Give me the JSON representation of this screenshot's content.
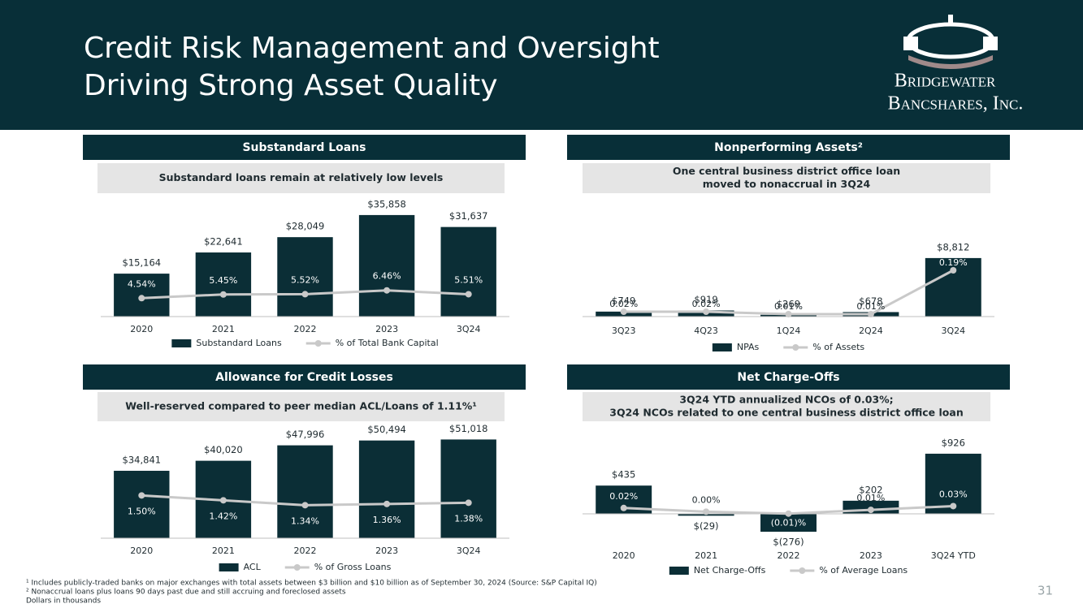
{
  "header": {
    "title": [
      "Credit Risk Management and Oversight",
      "Driving Strong Asset Quality"
    ],
    "logo": [
      "Bridgewater",
      "Bancshares, Inc."
    ]
  },
  "chart_data": [
    {
      "type": "combo",
      "title": "Substandard Loans",
      "subtitle": [
        "Substandard loans remain at relatively low levels"
      ],
      "categories": [
        "2020",
        "2021",
        "2022",
        "2023",
        "3Q24"
      ],
      "ylim": [
        0,
        43000
      ],
      "y2lim": [
        0,
        30
      ],
      "series": [
        {
          "name": "Substandard Loans",
          "type": "bar",
          "color": "#0b2e36",
          "values": [
            15164,
            22641,
            28049,
            35858,
            31637
          ],
          "value_labels": [
            "$15,164",
            "$22,641",
            "$28,049",
            "$35,858",
            "$31,637"
          ]
        },
        {
          "name": "% of Total Bank Capital",
          "type": "line",
          "axis": "y2",
          "color": "#c9c9c9",
          "values": [
            4.54,
            5.45,
            5.52,
            6.46,
            5.51
          ],
          "value_labels": [
            "4.54%",
            "5.45%",
            "5.52%",
            "6.46%",
            "5.51%"
          ]
        }
      ]
    },
    {
      "type": "combo",
      "title": "Nonperforming Assets²",
      "subtitle": [
        "One central business district office loan",
        "moved to nonaccrual in 3Q24"
      ],
      "categories": [
        "3Q23",
        "4Q23",
        "1Q24",
        "2Q24",
        "3Q24"
      ],
      "ylim": [
        0,
        11000
      ],
      "y2lim": [
        0,
        0.3
      ],
      "series": [
        {
          "name": "NPAs",
          "type": "bar",
          "color": "#0b2e36",
          "values": [
            749,
            919,
            269,
            678,
            8812
          ],
          "value_labels": [
            "$749",
            "$919",
            "$269",
            "$678",
            "$8,812"
          ]
        },
        {
          "name": "% of Assets",
          "type": "line",
          "axis": "y2",
          "color": "#c9c9c9",
          "values": [
            0.02,
            0.02,
            0.01,
            0.01,
            0.19
          ],
          "value_labels": [
            "0.02%",
            "0.02%",
            "0.01%",
            "0.01%",
            "0.19%"
          ]
        }
      ]
    },
    {
      "type": "combo",
      "title": "Allowance for Credit Losses",
      "subtitle": [
        "Well-reserved compared to peer median ACL/Loans of 1.11%¹"
      ],
      "categories": [
        "2020",
        "2021",
        "2022",
        "2023",
        "3Q24"
      ],
      "ylim": [
        0,
        60000
      ],
      "y2lim": [
        0.8,
        2.7
      ],
      "series": [
        {
          "name": "ACL",
          "type": "bar",
          "color": "#0b2e36",
          "values": [
            34841,
            40020,
            47996,
            50494,
            51018
          ],
          "value_labels": [
            "$34,841",
            "$40,020",
            "$47,996",
            "$50,494",
            "$51,018"
          ]
        },
        {
          "name": "% of Gross Loans",
          "type": "line",
          "axis": "y2",
          "color": "#c9c9c9",
          "values": [
            1.5,
            1.42,
            1.34,
            1.36,
            1.38
          ],
          "value_labels": [
            "1.50%",
            "1.42%",
            "1.34%",
            "1.36%",
            "1.38%"
          ]
        }
      ]
    },
    {
      "type": "combo",
      "title": "Net Charge-Offs",
      "subtitle": [
        "3Q24 YTD annualized NCOs of 0.03%;",
        "3Q24 NCOs related to one central business district office loan"
      ],
      "categories": [
        "2020",
        "2021",
        "2022",
        "2023",
        "3Q24 YTD"
      ],
      "ylim": [
        -400,
        1100
      ],
      "y2lim": [
        -0.15,
        0.37
      ],
      "series": [
        {
          "name": "Net Charge-Offs",
          "type": "bar",
          "color": "#0b2e36",
          "values": [
            435,
            -29,
            -276,
            202,
            926
          ],
          "value_labels": [
            "$435",
            "$(29)",
            "$(276)",
            "$202",
            "$926"
          ]
        },
        {
          "name": "% of Average Loans",
          "type": "line",
          "axis": "y2",
          "color": "#c9c9c9",
          "values": [
            0.02,
            0.0,
            -0.01,
            0.01,
            0.03
          ],
          "value_labels": [
            "0.02%",
            "0.00%",
            "(0.01)%",
            "0.01%",
            "0.03%"
          ]
        }
      ]
    }
  ],
  "footnotes": [
    "¹ Includes publicly-traded banks on major exchanges with total assets between $3 billion and $10 billion as of September 30, 2024 (Source: S&P Capital IQ)",
    "² Nonaccrual loans plus loans 90 days past due and still accruing and foreclosed assets",
    "Dollars in thousands"
  ],
  "page_number": "31"
}
